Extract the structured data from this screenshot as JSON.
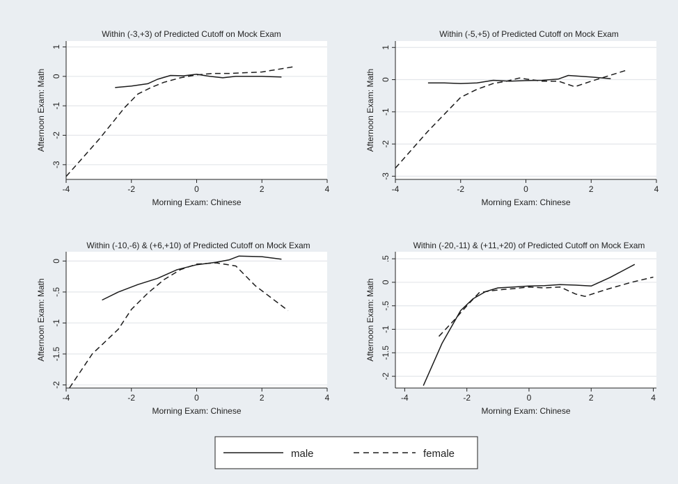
{
  "colors": {
    "background": "#eaeef2",
    "plot_background": "#ffffff",
    "grid": "#e3e6ea",
    "line": "#1a1a1a"
  },
  "legend": {
    "items": [
      {
        "label": "male",
        "style": "solid"
      },
      {
        "label": "female",
        "style": "dashed"
      }
    ]
  },
  "chart_data": [
    {
      "type": "line",
      "title": "Within (-3,+3) of Predicted Cutoff on Mock Exam",
      "xlabel": "Morning Exam: Chinese",
      "ylabel": "Afternoon Exam: Math",
      "xlim": [
        -4,
        4
      ],
      "ylim": [
        -3.5,
        1.2
      ],
      "xticks": [
        -4,
        -2,
        0,
        2,
        4
      ],
      "yticks": [
        1,
        0,
        -1,
        -2,
        -3
      ],
      "ytick_labels": [
        "1",
        "0",
        "-1",
        "-2",
        "-3"
      ],
      "grid": true,
      "series": [
        {
          "name": "male",
          "style": "solid",
          "x": [
            -2.5,
            -2.0,
            -1.5,
            -1.2,
            -0.8,
            -0.4,
            0.0,
            0.4,
            0.8,
            1.2,
            2.0,
            2.6
          ],
          "y": [
            -0.38,
            -0.33,
            -0.25,
            -0.1,
            0.03,
            0.02,
            0.07,
            0.0,
            -0.05,
            0.0,
            0.0,
            -0.02
          ]
        },
        {
          "name": "female",
          "style": "dashed",
          "x": [
            -4.0,
            -3.0,
            -2.2,
            -1.8,
            -1.4,
            -1.0,
            -0.5,
            0.0,
            0.5,
            1.0,
            2.0,
            3.0
          ],
          "y": [
            -3.4,
            -2.15,
            -1.05,
            -0.6,
            -0.38,
            -0.2,
            -0.05,
            0.05,
            0.1,
            0.1,
            0.15,
            0.33
          ]
        }
      ]
    },
    {
      "type": "line",
      "title": "Within (-5,+5) of Predicted Cutoff on Mock Exam",
      "xlabel": "Morning Exam: Chinese",
      "ylabel": "Afternoon Exam: Math",
      "xlim": [
        -4,
        4
      ],
      "ylim": [
        -3.1,
        1.2
      ],
      "xticks": [
        -4,
        -2,
        0,
        2,
        4
      ],
      "yticks": [
        1,
        0,
        -1,
        -2,
        -3
      ],
      "ytick_labels": [
        "1",
        "0",
        "-1",
        "-2",
        "-3"
      ],
      "grid": true,
      "series": [
        {
          "name": "male",
          "style": "solid",
          "x": [
            -3.0,
            -2.5,
            -2.0,
            -1.5,
            -1.0,
            -0.5,
            0.0,
            0.5,
            1.0,
            1.3,
            2.0,
            2.6
          ],
          "y": [
            -0.1,
            -0.1,
            -0.12,
            -0.1,
            -0.02,
            -0.05,
            -0.03,
            -0.02,
            0.02,
            0.13,
            0.08,
            0.03
          ]
        },
        {
          "name": "female",
          "style": "dashed",
          "x": [
            -4.0,
            -3.0,
            -2.0,
            -1.5,
            -1.0,
            -0.6,
            -0.2,
            0.0,
            0.5,
            1.0,
            1.5,
            2.0,
            3.1
          ],
          "y": [
            -2.75,
            -1.6,
            -0.55,
            -0.3,
            -0.12,
            -0.05,
            0.05,
            0.02,
            -0.05,
            -0.05,
            -0.22,
            -0.05,
            0.3
          ]
        }
      ]
    },
    {
      "type": "line",
      "title": "Within (-10,-6) & (+6,+10) of Predicted Cutoff on Mock Exam",
      "xlabel": "Morning Exam: Chinese",
      "ylabel": "Afternoon Exam: Math",
      "xlim": [
        -4,
        4
      ],
      "ylim": [
        -2.05,
        0.15
      ],
      "xticks": [
        -4,
        -2,
        0,
        2,
        4
      ],
      "yticks": [
        0,
        -0.5,
        -1,
        -1.5,
        -2
      ],
      "ytick_labels": [
        "0",
        "-.5",
        "-1",
        "-1.5",
        "-2"
      ],
      "grid": true,
      "series": [
        {
          "name": "male",
          "style": "solid",
          "x": [
            -2.9,
            -2.4,
            -1.8,
            -1.2,
            -0.6,
            0.0,
            0.6,
            1.0,
            1.3,
            2.0,
            2.6
          ],
          "y": [
            -0.63,
            -0.5,
            -0.38,
            -0.28,
            -0.14,
            -0.06,
            -0.02,
            0.02,
            0.08,
            0.07,
            0.03
          ]
        },
        {
          "name": "female",
          "style": "dashed",
          "x": [
            -3.9,
            -3.2,
            -2.4,
            -2.0,
            -1.5,
            -1.0,
            -0.5,
            0.0,
            0.6,
            1.2,
            1.8,
            2.8
          ],
          "y": [
            -2.05,
            -1.5,
            -1.1,
            -0.78,
            -0.52,
            -0.3,
            -0.14,
            -0.05,
            -0.03,
            -0.08,
            -0.4,
            -0.8
          ]
        }
      ]
    },
    {
      "type": "line",
      "title": "Within (-20,-11) & (+11,+20) of Predicted Cutoff on Mock Exam",
      "xlabel": "Morning Exam: Chinese",
      "ylabel": "Afternoon Exam: Math",
      "xlim": [
        -4.3,
        4.1
      ],
      "ylim": [
        -2.25,
        0.65
      ],
      "xticks": [
        -4,
        -2,
        0,
        2,
        4
      ],
      "yticks": [
        0.5,
        0,
        -0.5,
        -1,
        -1.5,
        -2
      ],
      "ytick_labels": [
        ".5",
        "0",
        "-.5",
        "-1",
        "-1.5",
        "-2"
      ],
      "grid": true,
      "series": [
        {
          "name": "male",
          "style": "solid",
          "x": [
            -3.4,
            -2.8,
            -2.2,
            -1.8,
            -1.4,
            -1.0,
            -0.5,
            0.0,
            0.5,
            1.0,
            1.5,
            2.0,
            2.6,
            3.4
          ],
          "y": [
            -2.2,
            -1.3,
            -0.6,
            -0.35,
            -0.2,
            -0.12,
            -0.1,
            -0.08,
            -0.07,
            -0.05,
            -0.06,
            -0.08,
            0.1,
            0.38
          ]
        },
        {
          "name": "female",
          "style": "dashed",
          "x": [
            -2.9,
            -2.4,
            -2.0,
            -1.6,
            -1.2,
            -0.8,
            -0.4,
            0.0,
            0.5,
            1.0,
            1.5,
            1.8,
            2.5,
            3.3,
            4.0
          ],
          "y": [
            -1.15,
            -0.8,
            -0.5,
            -0.22,
            -0.18,
            -0.15,
            -0.13,
            -0.1,
            -0.12,
            -0.1,
            -0.25,
            -0.3,
            -0.15,
            0.0,
            0.11
          ]
        }
      ]
    }
  ]
}
